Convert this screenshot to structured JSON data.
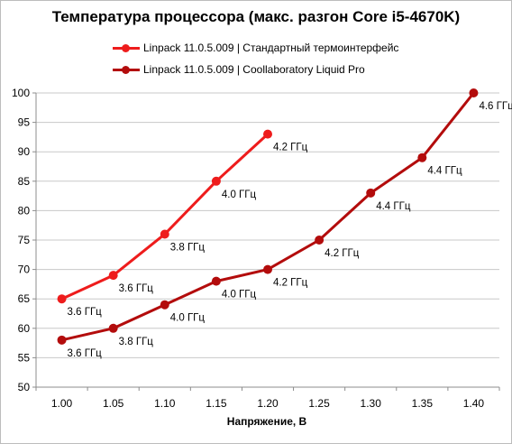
{
  "chart_data": {
    "type": "line",
    "title": "Температура процессора (макс. разгон Core i5-4670K)",
    "xlabel": "Напряжение, В",
    "ylabel": "",
    "categories": [
      "1.00",
      "1.05",
      "1.10",
      "1.15",
      "1.20",
      "1.25",
      "1.30",
      "1.35",
      "1.40"
    ],
    "ylim": [
      50,
      100
    ],
    "yticks": [
      50,
      55,
      60,
      65,
      70,
      75,
      80,
      85,
      90,
      95,
      100
    ],
    "grid": true,
    "legend_position": "top",
    "series": [
      {
        "name": "Linpack 11.0.5.009 | Стандартный термоинтерфейс",
        "color": "#ee1c1c",
        "x": [
          1.0,
          1.05,
          1.1,
          1.15,
          1.2
        ],
        "values": [
          65,
          69,
          76,
          85,
          93
        ],
        "labels": [
          "3.6 ГГц",
          "3.6 ГГц",
          "3.8 ГГц",
          "4.0 ГГц",
          "4.2 ГГц"
        ]
      },
      {
        "name": "Linpack 11.0.5.009 | Coollaboratory Liquid Pro",
        "color": "#b30c0c",
        "x": [
          1.0,
          1.05,
          1.1,
          1.15,
          1.2,
          1.25,
          1.3,
          1.35,
          1.4
        ],
        "values": [
          58,
          60,
          64,
          68,
          70,
          75,
          83,
          89,
          100
        ],
        "labels": [
          "3.6 ГГц",
          "3.8 ГГц",
          "4.0 ГГц",
          "4.0 ГГц",
          "4.2 ГГц",
          "4.2 ГГц",
          "4.4 ГГц",
          "4.4 ГГц",
          "4.6 ГГц"
        ]
      }
    ]
  }
}
